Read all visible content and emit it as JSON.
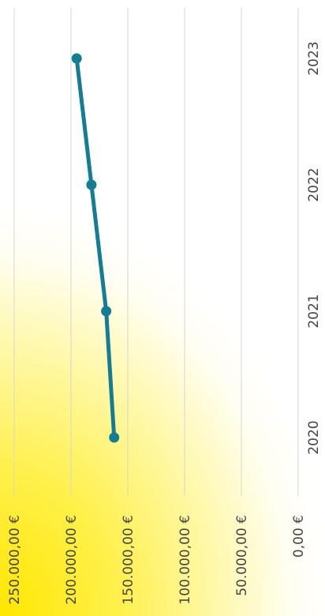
{
  "chart_data": {
    "type": "line",
    "orientation": "rotated-90",
    "title": "",
    "xlabel": "",
    "ylabel": "",
    "categories": [
      "2020",
      "2021",
      "2022",
      "2023"
    ],
    "y_ticks": [
      "0,00 €",
      "50.000,00 €",
      "100.000,00 €",
      "150.000,00 €",
      "200.000,00 €",
      "250.000,00 €"
    ],
    "ylim": [
      0,
      250000
    ],
    "series": [
      {
        "values": [
          162000,
          169000,
          182000,
          195000
        ],
        "color": "#137d95"
      }
    ],
    "grid": true,
    "legend": "none"
  },
  "colors": {
    "gridline": "#d6d6d6",
    "line": "#137d95",
    "text": "#444444"
  }
}
